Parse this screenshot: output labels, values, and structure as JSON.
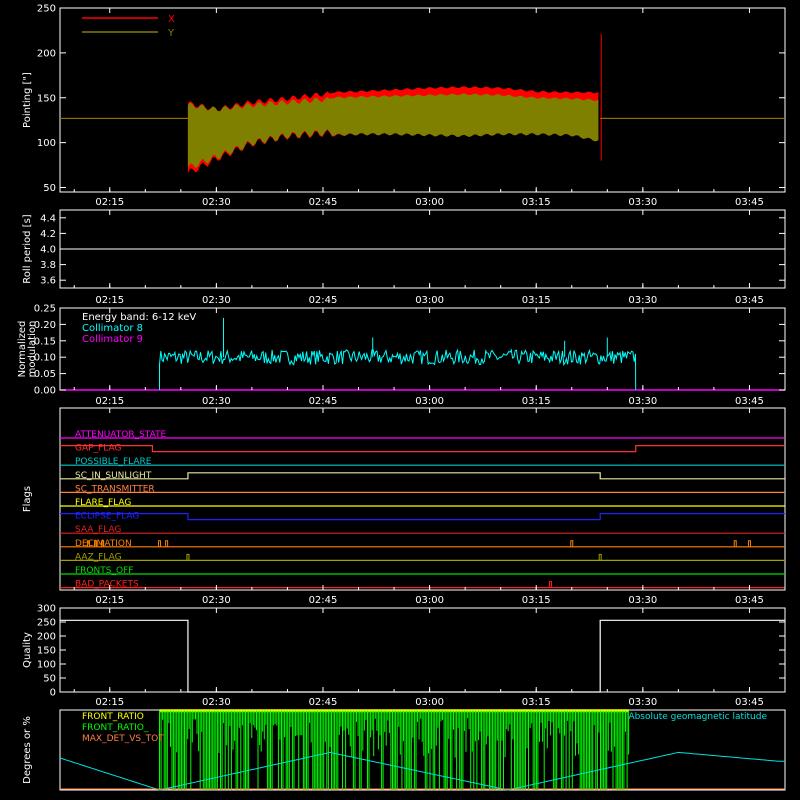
{
  "theme": {
    "background": "#000000",
    "axes": "#ffffff"
  },
  "chart_data": [
    {
      "type": "line",
      "ylabel": "Pointing [\"]",
      "ylim": [
        45,
        250
      ],
      "yticks": [
        50,
        100,
        150,
        200,
        250
      ],
      "xticks": [
        "02:15",
        "02:30",
        "02:45",
        "03:00",
        "03:15",
        "03:30",
        "03:45"
      ],
      "legend_position": "top-left",
      "series": [
        {
          "name": "X",
          "color": "#ff0000",
          "style": "band",
          "flat_before": 127,
          "flat_after": 127,
          "x_range": [
            "02:26",
            "03:24"
          ],
          "x": [
            "02:26",
            "02:30",
            "02:35",
            "02:40",
            "02:45",
            "02:50",
            "02:55",
            "03:00",
            "03:05",
            "03:10",
            "03:15",
            "03:20",
            "03:24"
          ],
          "max": [
            147,
            140,
            148,
            152,
            157,
            158,
            160,
            162,
            163,
            162,
            158,
            157,
            157
          ],
          "min": [
            62,
            78,
            95,
            103,
            106,
            108,
            108,
            107,
            106,
            108,
            108,
            107,
            100
          ]
        },
        {
          "name": "Y",
          "color": "#808000",
          "style": "band",
          "flat_before": 127,
          "flat_after": 127,
          "x_range": [
            "02:26",
            "03:24"
          ],
          "x": [
            "02:26",
            "02:30",
            "02:35",
            "02:40",
            "02:45",
            "02:50",
            "02:55",
            "03:00",
            "03:05",
            "03:10",
            "03:15",
            "03:20",
            "03:24"
          ],
          "max": [
            145,
            140,
            145,
            148,
            151,
            152,
            153,
            154,
            155,
            154,
            151,
            150,
            148
          ],
          "min": [
            68,
            80,
            96,
            104,
            107,
            108,
            108,
            107,
            106,
            108,
            108,
            107,
            100
          ]
        }
      ]
    },
    {
      "type": "line",
      "ylabel": "Roll period [s]",
      "ylim": [
        3.5,
        4.5
      ],
      "yticks": [
        "3.6",
        "3.8",
        "4.0",
        "4.2",
        "4.4"
      ],
      "xticks": [
        "02:15",
        "02:30",
        "02:45",
        "03:00",
        "03:15",
        "03:30",
        "03:45"
      ],
      "series": [
        {
          "color": "#ffffff",
          "constant": 4.0
        }
      ]
    },
    {
      "type": "line",
      "ylabel": "Normalized modulation",
      "ylim": [
        0,
        0.25
      ],
      "yticks": [
        "0.00",
        "0.05",
        "0.10",
        "0.15",
        "0.20",
        "0.25"
      ],
      "xticks": [
        "02:15",
        "02:30",
        "02:45",
        "03:00",
        "03:15",
        "03:30",
        "03:45"
      ],
      "legend_position": "top-left",
      "legend": [
        "Energy band: 6-12 keV",
        "Collimator 8",
        "Collimator 9"
      ],
      "legend_colors": [
        "#ffffff",
        "#00ffff",
        "#ff00ff"
      ],
      "series": [
        {
          "name": "Collimator 8",
          "color": "#00ffff",
          "x_range": [
            "02:22",
            "03:29"
          ],
          "level": 0.1,
          "spikes": [
            [
              "02:31",
              0.22
            ],
            [
              "02:52",
              0.16
            ],
            [
              "03:19",
              0.15
            ],
            [
              "03:25",
              0.16
            ]
          ]
        },
        {
          "name": "Collimator 9",
          "color": "#ff00ff",
          "constant": 0.0
        }
      ]
    },
    {
      "type": "line",
      "ylabel": "Flags",
      "xticks": [
        "02:15",
        "02:30",
        "02:45",
        "03:00",
        "03:15",
        "03:30",
        "03:45"
      ],
      "flags": [
        {
          "name": "ATTENUATOR_STATE",
          "color": "#ff00ff",
          "changes": []
        },
        {
          "name": "GAP_FLAG",
          "color": "#ff3030",
          "high_before": "02:21",
          "high_after": "03:29"
        },
        {
          "name": "POSSIBLE_FLARE",
          "color": "#00c8c8",
          "changes": []
        },
        {
          "name": "SC_IN_SUNLIGHT",
          "color": "#e8e8a0",
          "high_range": [
            "02:26",
            "03:24"
          ]
        },
        {
          "name": "SC_TRANSMITTER",
          "color": "#ff8040",
          "changes": []
        },
        {
          "name": "FLARE_FLAG",
          "color": "#ffff00",
          "changes": []
        },
        {
          "name": "ECLIPSE_FLAG",
          "color": "#2020ff",
          "high_before": "02:26",
          "high_after": "03:24"
        },
        {
          "name": "SAA_FLAG",
          "color": "#e02020",
          "changes": []
        },
        {
          "name": "DECIMATION",
          "color": "#ff8000",
          "glitches": [
            "02:12",
            "02:13",
            "02:14",
            "02:22",
            "02:23",
            "03:20",
            "03:43",
            "03:45"
          ]
        },
        {
          "name": "AAZ_FLAG",
          "color": "#a0a000",
          "glitches": [
            "02:26",
            "03:24"
          ]
        },
        {
          "name": "FRONTS_OFF",
          "color": "#00e000",
          "changes": []
        },
        {
          "name": "BAD_PACKETS",
          "color": "#ff2020",
          "glitches": [
            "03:17"
          ]
        }
      ]
    },
    {
      "type": "line",
      "ylabel": "Quality",
      "ylim": [
        0,
        300
      ],
      "yticks": [
        0,
        50,
        100,
        150,
        200,
        250,
        300
      ],
      "xticks": [
        "02:15",
        "02:30",
        "02:45",
        "03:00",
        "03:15",
        "03:30",
        "03:45"
      ],
      "series": [
        {
          "color": "#ffffff",
          "high_value": 256,
          "high_before": "02:26",
          "high_after": "03:24"
        }
      ]
    },
    {
      "type": "line",
      "ylabel": "Degrees or %",
      "ylim": [
        0,
        100
      ],
      "legend_position": "top-left",
      "legend": [
        "FRONT_RATIO",
        "FRONT_RATIO_",
        "MAX_DET_VS_TOT"
      ],
      "legend_colors": [
        "#ffff00",
        "#00ff00",
        "#ff8040"
      ],
      "annotation": "Absolute geomagnetic latitude",
      "annotation_color": "#00e0e0",
      "series": [
        {
          "name": "FRONT_RATIO_",
          "color": "#00ff00",
          "x_range": [
            "02:22",
            "03:28"
          ],
          "range": [
            0,
            100
          ]
        },
        {
          "name": "Absolute geomagnetic latitude",
          "color": "#00e0e0",
          "x": [
            "02:08",
            "02:22",
            "02:46",
            "03:11",
            "03:35",
            "03:49"
          ],
          "values": [
            40,
            0,
            47,
            0,
            47,
            36
          ]
        }
      ]
    }
  ]
}
